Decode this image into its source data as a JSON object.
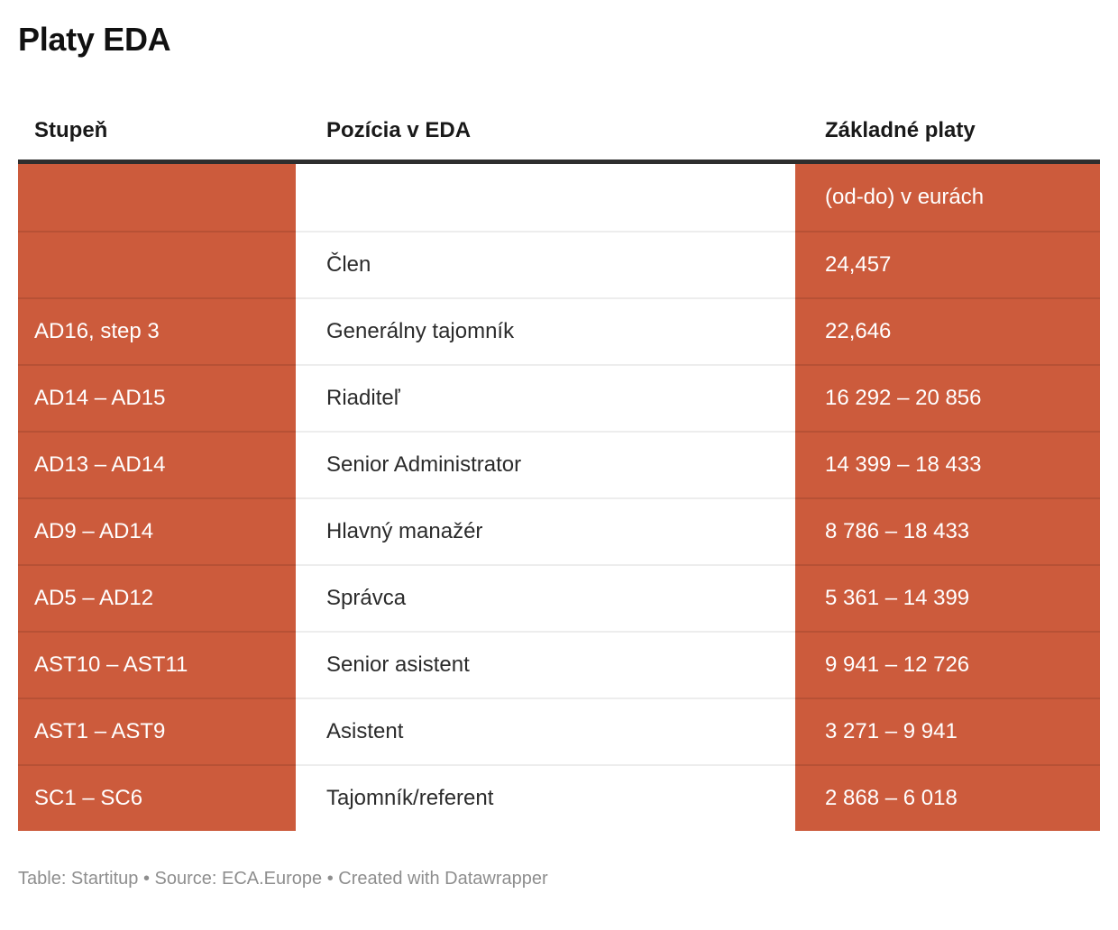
{
  "chart_data": {
    "type": "table",
    "title": "Platy EDA",
    "columns": [
      "Stupeň",
      "Pozícia v EDA",
      "Základné platy"
    ],
    "rows": [
      [
        "",
        "",
        "(od-do) v eurách"
      ],
      [
        "",
        "Člen",
        "24,457"
      ],
      [
        "AD16, step 3",
        "Generálny tajomník",
        "22,646"
      ],
      [
        "AD14 – AD15",
        "Riaditeľ",
        "16 292 – 20 856"
      ],
      [
        "AD13 – AD14",
        "Senior Administrator",
        "14 399 – 18 433"
      ],
      [
        "AD9 – AD14",
        "Hlavný manažér",
        "8 786 – 18 433"
      ],
      [
        "AD5 – AD12",
        "Správca",
        "5 361 – 14 399"
      ],
      [
        "AST10 – AST11",
        "Senior asistent",
        "9 941 – 12 726"
      ],
      [
        "AST1 – AST9",
        "Asistent",
        "3 271 – 9 941"
      ],
      [
        "SC1 – SC6",
        "Tajomník/referent",
        "2 868 – 6 018"
      ]
    ],
    "footer": "Table: Startitup • Source: ECA.Europe • Created with Datawrapper",
    "layout": {
      "accent_color": "#cc5b3c",
      "header_rule_color": "#2e2e2e",
      "highlighted_columns": [
        0,
        2
      ],
      "grid": "horizontal-only",
      "legend": "none"
    }
  }
}
